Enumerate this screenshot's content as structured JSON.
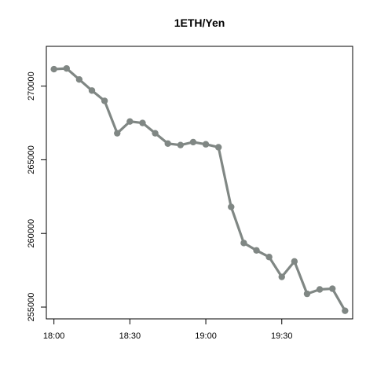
{
  "chart_data": {
    "type": "line",
    "title": "1ETH/Yen",
    "xlabel": "",
    "ylabel": "",
    "x_unit": "time",
    "x": [
      "18:00",
      "18:05",
      "18:10",
      "18:15",
      "18:20",
      "18:25",
      "18:30",
      "18:35",
      "18:40",
      "18:45",
      "18:50",
      "18:55",
      "19:00",
      "19:05",
      "19:10",
      "19:15",
      "19:20",
      "19:25",
      "19:30",
      "19:35",
      "19:40",
      "19:45",
      "19:50",
      "19:55"
    ],
    "series": [
      {
        "values": [
          271150,
          271200,
          270450,
          269700,
          269000,
          266800,
          267600,
          267500,
          266800,
          266100,
          266000,
          266200,
          266050,
          265850,
          261800,
          259350,
          258850,
          258400,
          257050,
          258100,
          255900,
          256200,
          256250,
          254750
        ]
      }
    ],
    "xlim": [
      "17:57",
      "19:58"
    ],
    "ylim": [
      254200,
      272700
    ],
    "xticks": [
      "18:00",
      "18:30",
      "19:00",
      "19:30"
    ],
    "yticks": [
      255000,
      260000,
      265000,
      270000
    ],
    "ytick_labels": [
      "255000",
      "260000",
      "265000",
      "270000"
    ],
    "grid": false,
    "legend": "none",
    "line_color": "#808784"
  }
}
